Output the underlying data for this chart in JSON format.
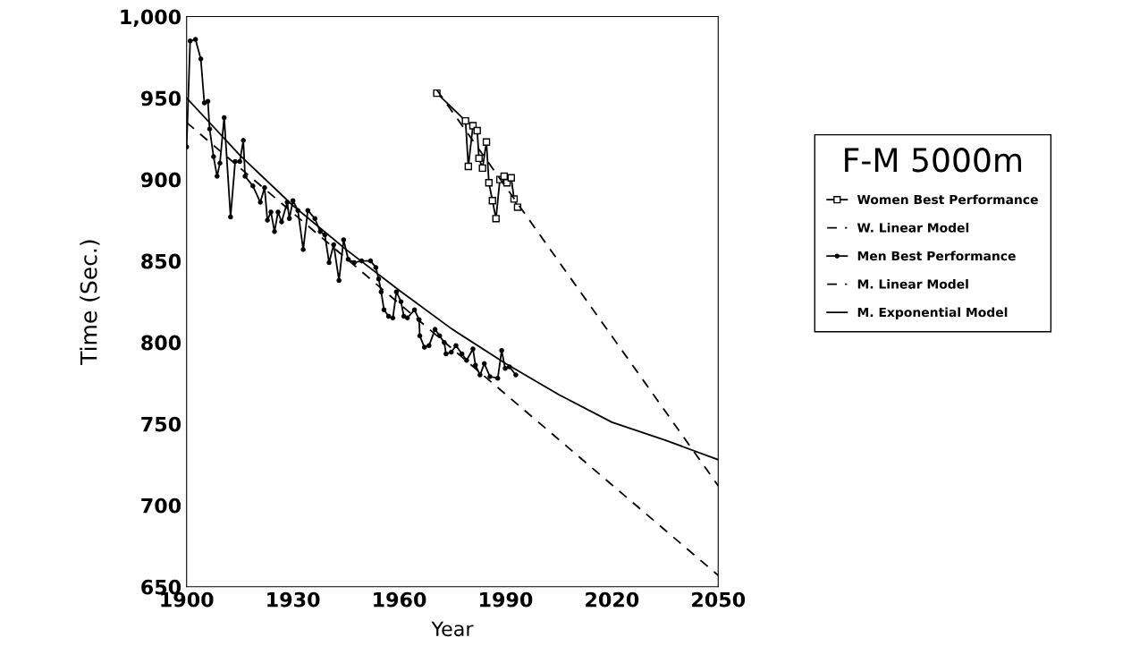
{
  "chart_data": {
    "type": "line",
    "xlabel": "Year",
    "ylabel": "Time (Sec.)",
    "legend_title": "F-M 5000m",
    "legend": "right",
    "grid": false,
    "xlim": [
      1900,
      2050
    ],
    "xticks": [
      1900,
      1930,
      1960,
      1990,
      2020,
      2050
    ],
    "ylim": [
      650,
      1000
    ],
    "yticks": [
      650,
      700,
      750,
      800,
      850,
      900,
      950,
      {
        "value": 1000,
        "label": "1,000"
      }
    ],
    "series": [
      {
        "name": "Women Best Performance",
        "color": "#000000",
        "marker": "square",
        "line_style": "solid",
        "x": [
          1970.6,
          1978.7,
          1979.5,
          1980.8,
          1982,
          1982.5,
          1983.5,
          1984.6,
          1985.3,
          1986.3,
          1987.3,
          1988.4,
          1989.6,
          1990.4,
          1991.6,
          1992.4,
          1993.4
        ],
        "values": [
          953,
          936,
          908,
          933,
          930,
          913,
          907,
          923,
          898,
          887,
          876,
          900,
          902,
          898,
          901,
          888,
          883
        ]
      },
      {
        "name": "W. Linear Model",
        "color": "#000000",
        "marker": "none",
        "line_style": "dashed",
        "x": [
          1970.6,
          2050
        ],
        "values": [
          955,
          712
        ]
      },
      {
        "name": "Men Best Performance",
        "color": "#000000",
        "marker": "circle",
        "line_style": "solid",
        "x": [
          1900,
          1901,
          1902.5,
          1904,
          1905,
          1906,
          1906.5,
          1907.6,
          1908.6,
          1909.4,
          1910.6,
          1912.4,
          1913.7,
          1915,
          1916,
          1916.5,
          1918.7,
          1920.8,
          1922,
          1922.8,
          1923.8,
          1924.8,
          1925.8,
          1926.8,
          1928.4,
          1929,
          1930,
          1931.4,
          1932.9,
          1934.2,
          1936.2,
          1937.7,
          1939,
          1940.2,
          1941.5,
          1943,
          1944.3,
          1945.6,
          1947.3,
          1949.4,
          1951.9,
          1953.4,
          1954.2,
          1954.9,
          1955.7,
          1957,
          1958.2,
          1959.2,
          1960.5,
          1961.3,
          1962.3,
          1964.3,
          1965.6,
          1965.8,
          1967.1,
          1968.4,
          1970.1,
          1971.4,
          1972.7,
          1973.2,
          1974.7,
          1976,
          1977.7,
          1979,
          1980.8,
          1981.5,
          1982.8,
          1984,
          1985.6,
          1987.8,
          1988.9,
          1989.9,
          1991.1,
          1992.9
        ],
        "values": [
          920,
          985,
          986,
          974,
          947,
          948,
          931,
          914,
          902,
          910,
          938,
          877,
          911,
          911,
          924,
          902,
          896,
          886,
          895,
          875,
          880,
          868,
          880,
          874,
          886,
          876,
          887,
          881,
          857,
          881,
          876,
          868,
          866,
          849,
          860,
          838,
          863,
          851,
          849,
          850,
          850,
          846,
          839,
          831,
          820,
          816,
          815,
          831,
          825,
          816,
          815,
          820,
          814,
          804,
          797,
          798,
          808,
          804,
          800,
          793,
          794,
          798,
          793,
          789,
          796,
          786,
          780,
          787,
          779,
          778,
          795,
          784,
          785,
          780
        ]
      },
      {
        "name": "M. Linear Model",
        "color": "#000000",
        "marker": "none",
        "line_style": "dashed",
        "x": [
          1900,
          2050
        ],
        "values": [
          935,
          657
        ]
      },
      {
        "name": "M. Exponential Model",
        "color": "#000000",
        "marker": "none",
        "line_style": "solid",
        "x": [
          1900,
          1915,
          1930,
          1945,
          1960,
          1975,
          1990,
          2005,
          2020,
          2035,
          2050
        ],
        "values": [
          950,
          915,
          884,
          857,
          832,
          808,
          787,
          768,
          751,
          740,
          728
        ]
      }
    ]
  }
}
